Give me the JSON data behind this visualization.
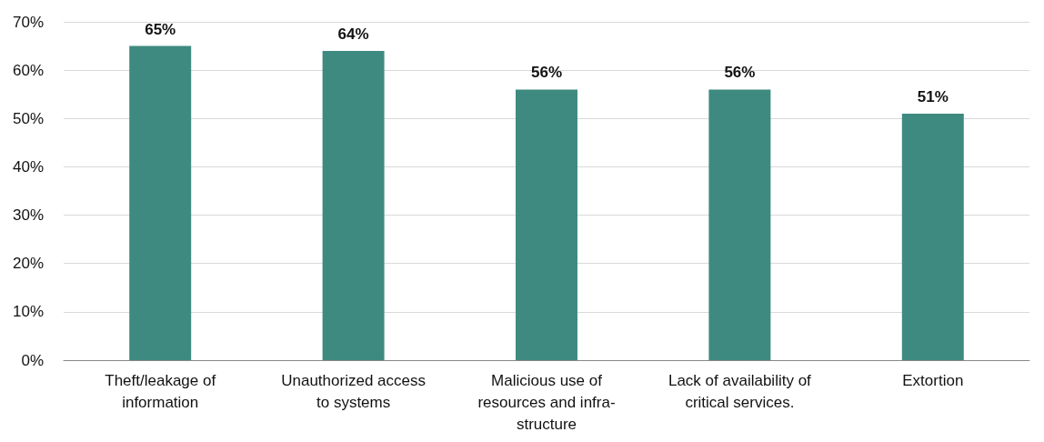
{
  "chart_data": {
    "type": "bar",
    "categories": [
      "Theft/leakage of\ninformation",
      "Unauthorized access\nto systems",
      "Malicious use of\nresources and infra-\nstructure",
      "Lack of availability of\ncritical services.",
      "Extortion"
    ],
    "values": [
      65,
      64,
      56,
      56,
      51
    ],
    "value_labels": [
      "65%",
      "64%",
      "56%",
      "56%",
      "51%"
    ],
    "color": "#3e8a80",
    "ylim": [
      0,
      70
    ],
    "yticks": [
      {
        "value": 0,
        "label": "0%"
      },
      {
        "value": 10,
        "label": "10%"
      },
      {
        "value": 20,
        "label": "20%"
      },
      {
        "value": 30,
        "label": "30%"
      },
      {
        "value": 40,
        "label": "40%"
      },
      {
        "value": 50,
        "label": "50%"
      },
      {
        "value": 60,
        "label": "60%"
      },
      {
        "value": 70,
        "label": "70%"
      }
    ],
    "grid": "y"
  }
}
